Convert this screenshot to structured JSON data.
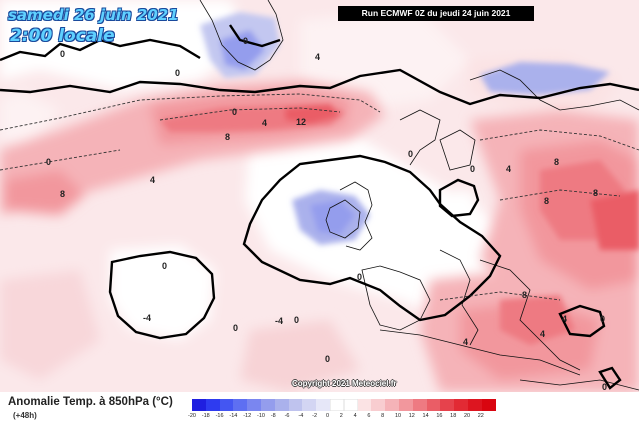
{
  "header": {
    "date": "samedi 26 juin 2021",
    "time": "2:00 locale",
    "run": "Run ECMWF 0Z du jeudi 24 juin 2021"
  },
  "map": {
    "isoline_labels": {
      "greenland_0": "0",
      "greenland_4": "4",
      "north_0": "0",
      "atl_0a": "0",
      "atl_0b": "0",
      "atl_4": "4",
      "atl_8": "8",
      "atl_12": "12",
      "left_8": "8",
      "mid_4": "4",
      "mid_0": "0",
      "az_0": "0",
      "az_neg4": "-4",
      "low_0": "0",
      "mid_0b": "0",
      "uk_neg4": "-4",
      "iberia_0": "0",
      "eu_0": "0",
      "eu_4": "4",
      "east_8a": "8",
      "east_8b": "8",
      "east_8c": "8",
      "bal_8": "8",
      "scan_0": "0",
      "se_0": "0",
      "med_0": "0",
      "med_4": "4",
      "south_4": "4",
      "far_4": "4",
      "far_0": "0"
    }
  },
  "legend": {
    "title": "Anomalie Temp. à 850hPa (°C)",
    "subtitle": "(+48h)",
    "ticks": [
      "-20",
      "-18",
      "-16",
      "-14",
      "-12",
      "-10",
      "-8",
      "-6",
      "-4",
      "-2",
      "0",
      "2",
      "4",
      "6",
      "8",
      "10",
      "12",
      "14",
      "16",
      "18",
      "20",
      "22"
    ],
    "colors": [
      "#1f1fe0",
      "#2e3bf0",
      "#4456f2",
      "#5e6ff2",
      "#7a86f0",
      "#949ded",
      "#aab1ec",
      "#bfc3ee",
      "#d3d5f3",
      "#e6e7f8",
      "#ffffff",
      "#ffffff",
      "#fbe3e4",
      "#f8cdd0",
      "#f5b3b8",
      "#f2979d",
      "#ee7a82",
      "#ea5d66",
      "#e6424c",
      "#e22a34",
      "#dd1520",
      "#d90510"
    ]
  },
  "footer": {
    "copyright": "Copyright 2021 Meteociel.fr"
  }
}
